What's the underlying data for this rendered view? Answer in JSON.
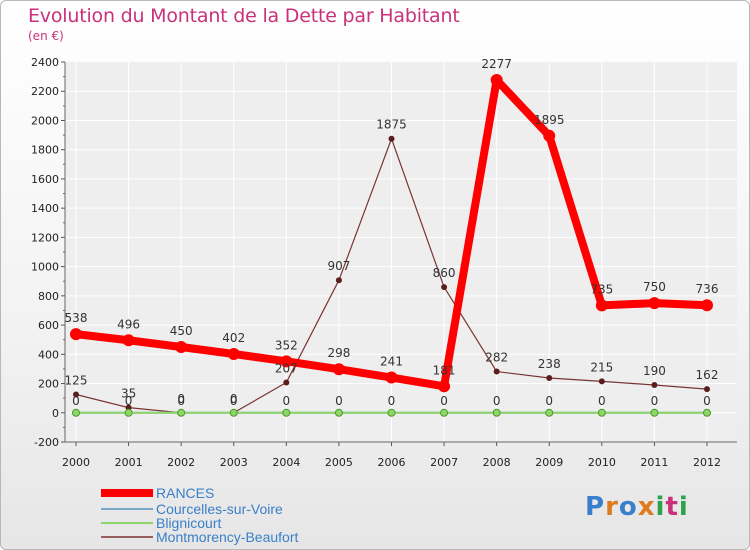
{
  "title": "Evolution du Montant de la Dette par Habitant",
  "unit_label": "(en €)",
  "logo": {
    "text": "Proxiti",
    "colors": [
      "#3a7fc9",
      "#e07a1f",
      "#3a7fc9",
      "#e07a1f",
      "#2ea24a",
      "#c8327a",
      "#2ea24a"
    ]
  },
  "chart_data": {
    "type": "line",
    "title": "Evolution du Montant de la Dette par Habitant",
    "ylabel": "(en €)",
    "xlabel": "",
    "categories": [
      "2000",
      "2001",
      "2002",
      "2003",
      "2004",
      "2005",
      "2006",
      "2007",
      "2008",
      "2009",
      "2010",
      "2011",
      "2012"
    ],
    "ylim": [
      -200,
      2400
    ],
    "yticks": [
      -200,
      0,
      200,
      400,
      600,
      800,
      1000,
      1200,
      1400,
      1600,
      1800,
      2000,
      2200,
      2400
    ],
    "grid": true,
    "legend_position": "bottom-left",
    "series": [
      {
        "name": "RANCES",
        "color": "#ff0000",
        "values": [
          538,
          496,
          450,
          402,
          352,
          298,
          241,
          181,
          2277,
          1895,
          735,
          750,
          736
        ]
      },
      {
        "name": "Courcelles-sur-Voire",
        "color": "#7aa6c8",
        "values": [
          0,
          0,
          0,
          0,
          0,
          0,
          0,
          0,
          0,
          0,
          0,
          0,
          0
        ]
      },
      {
        "name": "Blignicourt",
        "color": "#8fd66a",
        "values": [
          0,
          0,
          0,
          0,
          0,
          0,
          0,
          0,
          0,
          0,
          0,
          0,
          0
        ]
      },
      {
        "name": "Montmorency-Beaufort",
        "color": "#7a3434",
        "values": [
          125,
          35,
          0,
          0,
          207,
          907,
          1875,
          860,
          282,
          238,
          215,
          190,
          162
        ]
      }
    ]
  }
}
